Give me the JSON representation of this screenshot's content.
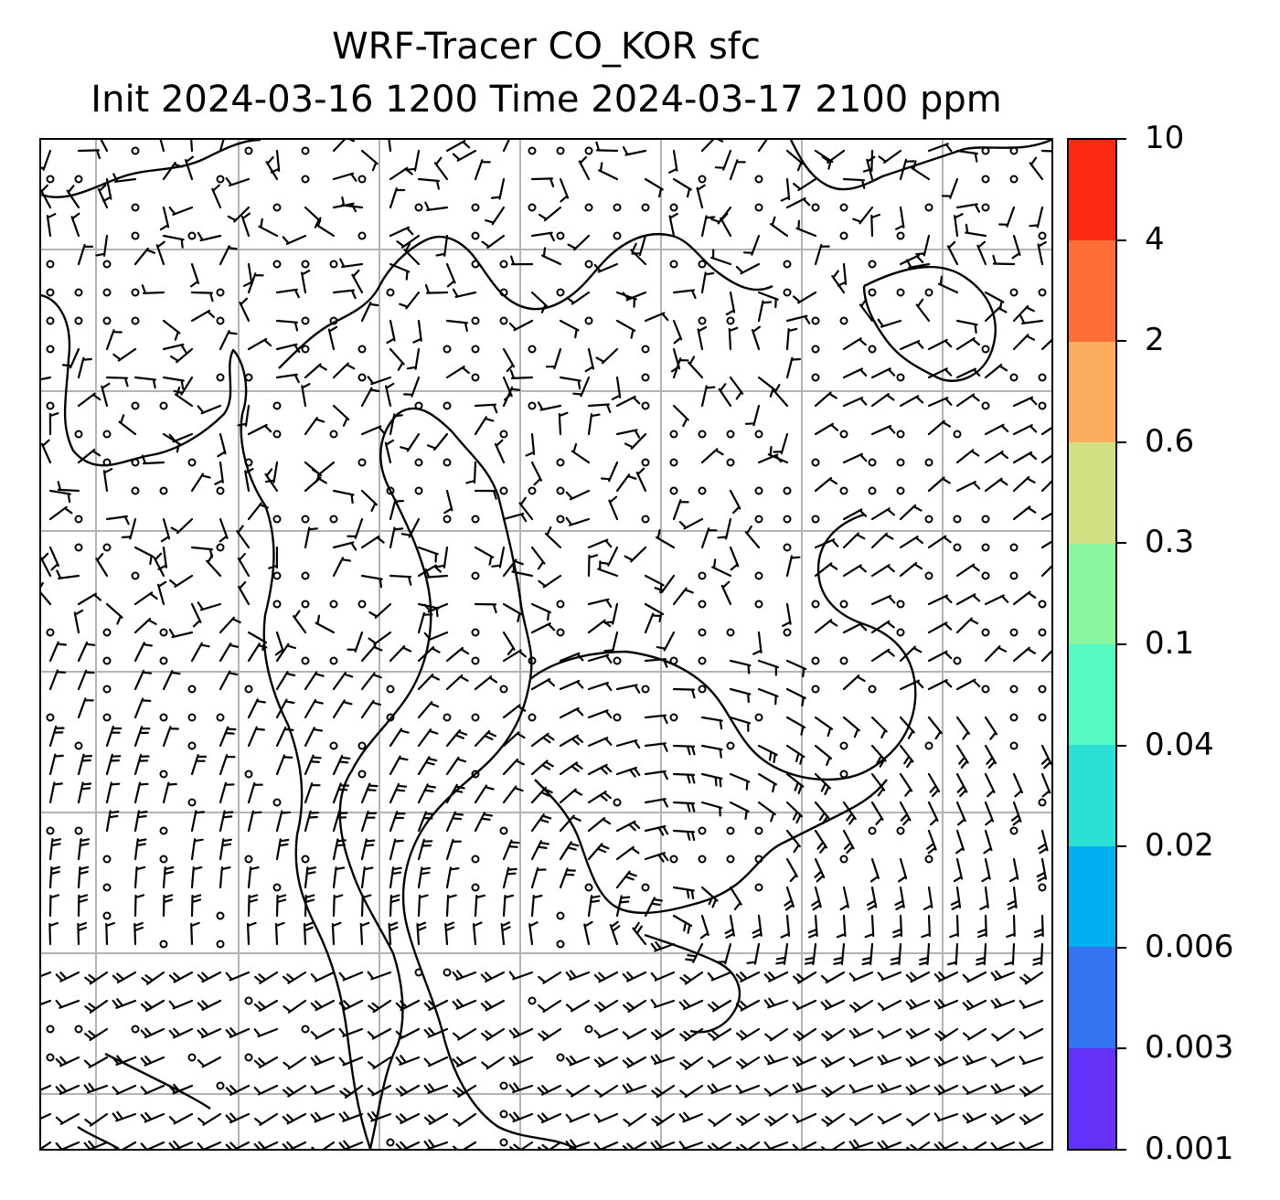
{
  "title": {
    "line1": "WRF-Tracer CO_KOR sfc",
    "line2": "Init 2024-03-16 1200 Time 2024-03-17 2100 ppm"
  },
  "colorbar": {
    "tick_labels": [
      "10",
      "4",
      "2",
      "0.6",
      "0.3",
      "0.1",
      "0.04",
      "0.02",
      "0.006",
      "0.003",
      "0.001"
    ],
    "colors": [
      "#ff2a14",
      "#ff6e37",
      "#fdad5e",
      "#d2e083",
      "#88f7a0",
      "#56f8c3",
      "#2ce0d6",
      "#00b0f0",
      "#3476f1",
      "#6432f9"
    ]
  },
  "map": {
    "gridline_color": "#b3b3b3",
    "coastline_color": "#000000",
    "wind_barb_color": "#000000"
  }
}
